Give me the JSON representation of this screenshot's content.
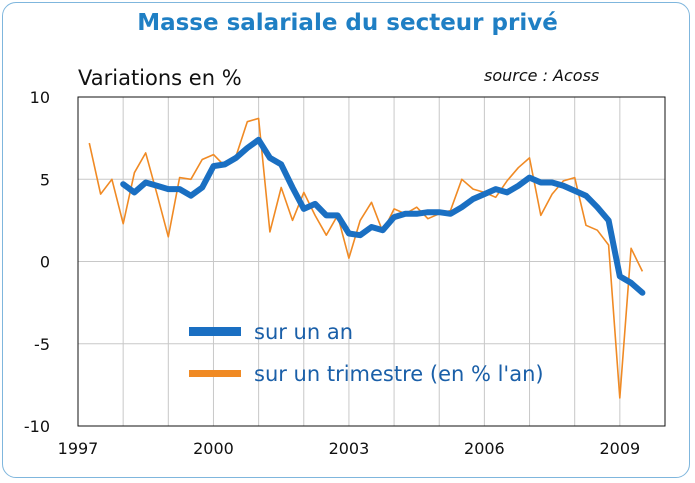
{
  "colors": {
    "frame": "#7fb6dd",
    "title": "#1f7fc4",
    "annual_series": "#1a6fc2",
    "quarterly_series": "#f08a24",
    "grid": "#c8c8c8",
    "legend_text": "#1a5fa8"
  },
  "chart_data": {
    "type": "line",
    "title": "Masse salariale du secteur privé",
    "ylabel": "Variations en %",
    "source_note": "source : Acoss",
    "xlim": [
      1997,
      2010
    ],
    "ylim": [
      -10,
      10
    ],
    "x_ticks": [
      1997,
      2000,
      2003,
      2006,
      2009
    ],
    "x_tick_labels": [
      "1997",
      "2000",
      "2003",
      "2006",
      "2009"
    ],
    "y_ticks": [
      10,
      5,
      0,
      -5,
      -10
    ],
    "y_tick_labels": [
      "10",
      "5",
      "0",
      "-5",
      "-10"
    ],
    "grid": true,
    "legend_position": "lower-middle",
    "series": [
      {
        "name": "sur un an",
        "x": [
          1998.0,
          1998.25,
          1998.5,
          1998.75,
          1999.0,
          1999.25,
          1999.5,
          1999.75,
          2000.0,
          2000.25,
          2000.5,
          2000.75,
          2001.0,
          2001.25,
          2001.5,
          2001.75,
          2002.0,
          2002.25,
          2002.5,
          2002.75,
          2003.0,
          2003.25,
          2003.5,
          2003.75,
          2004.0,
          2004.25,
          2004.5,
          2004.75,
          2005.0,
          2005.25,
          2005.5,
          2005.75,
          2006.0,
          2006.25,
          2006.5,
          2006.75,
          2007.0,
          2007.25,
          2007.5,
          2007.75,
          2008.0,
          2008.25,
          2008.5,
          2008.75,
          2009.0,
          2009.25,
          2009.5
        ],
        "values": [
          4.7,
          4.2,
          4.8,
          4.6,
          4.4,
          4.4,
          4.0,
          4.5,
          5.8,
          5.9,
          6.3,
          6.9,
          7.4,
          6.3,
          5.9,
          4.5,
          3.2,
          3.5,
          2.8,
          2.8,
          1.7,
          1.6,
          2.1,
          1.9,
          2.7,
          2.9,
          2.9,
          3.0,
          3.0,
          2.9,
          3.3,
          3.8,
          4.1,
          4.4,
          4.2,
          4.6,
          5.1,
          4.8,
          4.8,
          4.6,
          4.3,
          4.0,
          3.3,
          2.5,
          -0.9,
          -1.3,
          -1.9
        ]
      },
      {
        "name": "sur un trimestre (en % l'an)",
        "x": [
          1997.25,
          1997.5,
          1997.75,
          1998.0,
          1998.25,
          1998.5,
          1998.75,
          1999.0,
          1999.25,
          1999.5,
          1999.75,
          2000.0,
          2000.25,
          2000.5,
          2000.75,
          2001.0,
          2001.25,
          2001.5,
          2001.75,
          2002.0,
          2002.25,
          2002.5,
          2002.75,
          2003.0,
          2003.25,
          2003.5,
          2003.75,
          2004.0,
          2004.25,
          2004.5,
          2004.75,
          2005.0,
          2005.25,
          2005.5,
          2005.75,
          2006.0,
          2006.25,
          2006.5,
          2006.75,
          2007.0,
          2007.25,
          2007.5,
          2007.75,
          2008.0,
          2008.25,
          2008.5,
          2008.75,
          2009.0,
          2009.25,
          2009.5
        ],
        "values": [
          7.2,
          4.1,
          5.0,
          2.3,
          5.4,
          6.6,
          4.1,
          1.5,
          5.1,
          5.0,
          6.2,
          6.5,
          5.8,
          6.4,
          8.5,
          8.7,
          1.8,
          4.5,
          2.5,
          4.2,
          2.8,
          1.6,
          2.8,
          0.2,
          2.5,
          3.6,
          1.8,
          3.2,
          2.9,
          3.3,
          2.6,
          2.9,
          3.1,
          5.0,
          4.4,
          4.2,
          3.9,
          4.9,
          5.7,
          6.3,
          2.8,
          4.1,
          4.9,
          5.1,
          2.2,
          1.9,
          1.0,
          -8.3,
          0.8,
          -0.6
        ]
      }
    ]
  }
}
